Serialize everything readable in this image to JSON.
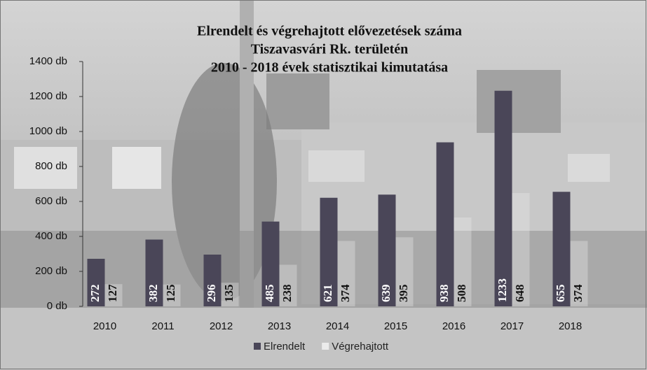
{
  "chart_data": {
    "type": "bar",
    "title": [
      "Elrendelt és végrehajtott elővezetések száma",
      "Tiszavasvári Rk. területén",
      "2010 - 2018 évek statisztikai kimutatása"
    ],
    "categories": [
      "2010",
      "2011",
      "2012",
      "2013",
      "2014",
      "2015",
      "2016",
      "2017",
      "2018"
    ],
    "series": [
      {
        "name": "Elrendelt",
        "color": "#4a4658",
        "values": [
          272,
          382,
          296,
          485,
          621,
          639,
          938,
          1233,
          655
        ]
      },
      {
        "name": "Végrehajtott",
        "color": "#ebebeb",
        "values": [
          127,
          125,
          135,
          238,
          374,
          395,
          508,
          648,
          374
        ]
      }
    ],
    "ylim": [
      0,
      1400
    ],
    "yticks": [
      {
        "value": 0,
        "label": "0 db"
      },
      {
        "value": 200,
        "label": "200 db"
      },
      {
        "value": 400,
        "label": "400 db"
      },
      {
        "value": 600,
        "label": "600 db"
      },
      {
        "value": 800,
        "label": "800 db"
      },
      {
        "value": 1000,
        "label": "1000 db"
      },
      {
        "value": 1200,
        "label": "1200 db"
      },
      {
        "value": 1400,
        "label": "1400 db"
      }
    ],
    "legend": "bottom"
  }
}
